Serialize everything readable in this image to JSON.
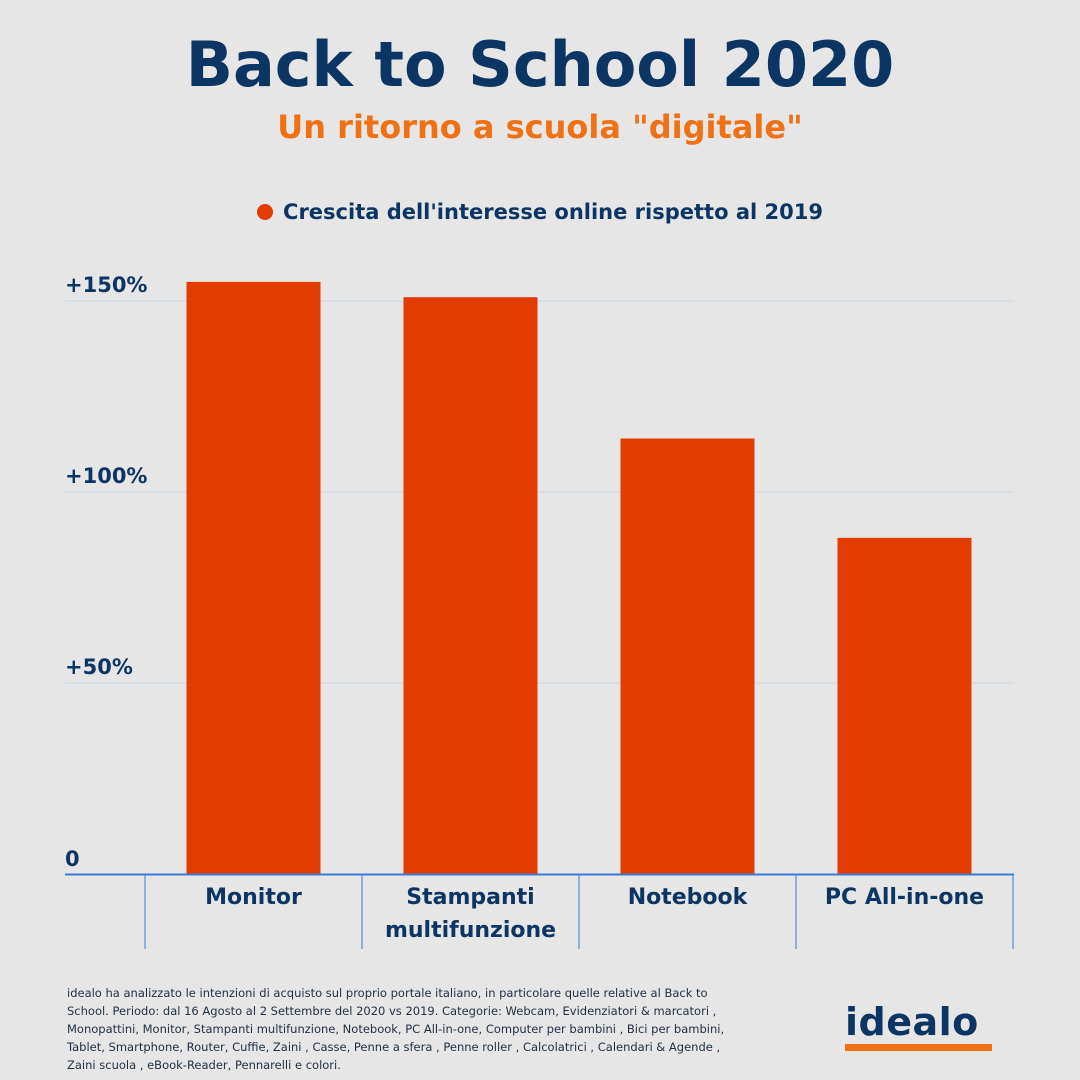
{
  "header": {
    "title": "Back to School 2020",
    "subtitle": "Un ritorno a scuola \"digitale\""
  },
  "colors": {
    "bar": "#e23c00",
    "title": "#0d3563",
    "accent": "#f07014",
    "gridline": "#c5d5e6",
    "axis": "#3a7bd5"
  },
  "chart_data": {
    "type": "bar",
    "categories": [
      "Monitor",
      "Stampanti multifunzione",
      "Notebook",
      "PC All-in-one"
    ],
    "category_lines": [
      [
        "Monitor"
      ],
      [
        "Stampanti",
        "multifunzione"
      ],
      [
        "Notebook"
      ],
      [
        "PC All-in-one"
      ]
    ],
    "series": [
      {
        "name": "Crescita dell'interesse online rispetto al 2019",
        "values": [
          155,
          151,
          114,
          88
        ]
      }
    ],
    "yticks": [
      0,
      50,
      100,
      150
    ],
    "ytick_labels": [
      "0",
      "+50%",
      "+100%",
      "+150%"
    ],
    "ylim": [
      0,
      160
    ],
    "grid": true,
    "legend_position": "top-center"
  },
  "footnote": "idealo ha analizzato le intenzioni di acquisto sul proprio portale italiano, in particolare quelle relative al Back to School. Periodo: dal 16 Agosto al 2 Settembre del 2020 vs 2019. Categorie: Webcam, Evidenziatori & marcatori , Monopattini, Monitor, Stampanti multifunzione, Notebook, PC All-in-one, Computer per bambini , Bici per bambini, Tablet, Smartphone, Router, Cuffie, Zaini , Casse, Penne a sfera , Penne roller , Calcolatrici , Calendari & Agende , Zaini scuola , eBook-Reader, Pennarelli e colori.",
  "logo": {
    "text": "idealo"
  }
}
